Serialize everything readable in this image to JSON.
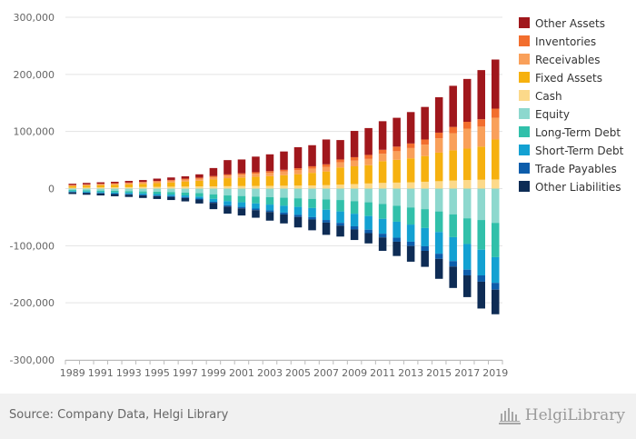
{
  "chart_data": {
    "type": "bar",
    "stacked": true,
    "categories": [
      "1989",
      "1990",
      "1991",
      "1992",
      "1993",
      "1994",
      "1995",
      "1996",
      "1997",
      "1998",
      "1999",
      "2000",
      "2001",
      "2002",
      "2003",
      "2004",
      "2005",
      "2006",
      "2007",
      "2008",
      "2009",
      "2010",
      "2011",
      "2012",
      "2013",
      "2014",
      "2015",
      "2016",
      "2017",
      "2018",
      "2019"
    ],
    "x_tick_labels": [
      "1989",
      "1991",
      "1993",
      "1995",
      "1997",
      "1999",
      "2001",
      "2003",
      "2005",
      "2007",
      "2009",
      "2011",
      "2013",
      "2015",
      "2017",
      "2019"
    ],
    "y_tick_labels": [
      "300,000",
      "200,000",
      "100,000",
      "0",
      "-100,000",
      "-200,000",
      "-300,000"
    ],
    "ylim": [
      -300000,
      300000
    ],
    "grid": true,
    "legend_position": "right",
    "series": [
      {
        "name": "Cash",
        "color": "#fcd98a",
        "values": [
          1500,
          1800,
          2000,
          2200,
          2500,
          2800,
          3000,
          3300,
          3500,
          3800,
          4000,
          4200,
          4400,
          4600,
          4800,
          5000,
          5200,
          5600,
          6000,
          7000,
          8000,
          9000,
          10000,
          10500,
          11000,
          12000,
          13000,
          14000,
          15000,
          15500,
          16000
        ]
      },
      {
        "name": "Fixed Assets",
        "color": "#f6b10f",
        "values": [
          3000,
          3500,
          4000,
          4500,
          5000,
          5500,
          6500,
          7500,
          9000,
          10000,
          12000,
          14000,
          15000,
          16000,
          17000,
          18500,
          20000,
          22000,
          24000,
          30000,
          31000,
          32000,
          38000,
          40000,
          42000,
          45000,
          50000,
          53000,
          55000,
          58000,
          70000
        ]
      },
      {
        "name": "Receivables",
        "color": "#f9a05a",
        "values": [
          1500,
          1600,
          1800,
          2000,
          2200,
          2500,
          2800,
          3000,
          3300,
          3600,
          4000,
          4500,
          5000,
          5500,
          6000,
          6500,
          7000,
          7500,
          8000,
          9000,
          10000,
          11000,
          13000,
          15000,
          18000,
          20000,
          25000,
          30000,
          35000,
          35000,
          38000
        ]
      },
      {
        "name": "Inventories",
        "color": "#f26e2e",
        "values": [
          500,
          600,
          700,
          800,
          900,
          1000,
          1200,
          1400,
          1600,
          1800,
          2000,
          2200,
          2400,
          2600,
          2800,
          3000,
          3500,
          4000,
          4500,
          5000,
          6000,
          7000,
          7000,
          8000,
          8000,
          9000,
          10000,
          11000,
          12000,
          13000,
          16000
        ]
      },
      {
        "name": "Other Assets",
        "color": "#a0171c",
        "values": [
          2000,
          2500,
          2500,
          2500,
          2900,
          3200,
          4000,
          4300,
          4100,
          5800,
          14000,
          25000,
          24200,
          27300,
          29400,
          32000,
          36800,
          36900,
          43500,
          34000,
          46000,
          47000,
          50000,
          50500,
          55000,
          57000,
          62000,
          72000,
          75000,
          86000,
          86000
        ]
      },
      {
        "name": "Equity",
        "color": "#8dd8ce",
        "values": [
          -2500,
          -3000,
          -3500,
          -4000,
          -4500,
          -5000,
          -5500,
          -6000,
          -7000,
          -8000,
          -10000,
          -12000,
          -13000,
          -14000,
          -15000,
          -16000,
          -17000,
          -18000,
          -19000,
          -20000,
          -22000,
          -24000,
          -27000,
          -30000,
          -33000,
          -36000,
          -40000,
          -45000,
          -52000,
          -55000,
          -60000
        ]
      },
      {
        "name": "Long-Term Debt",
        "color": "#31c0aa",
        "values": [
          -2000,
          -2300,
          -2500,
          -2800,
          -3000,
          -3500,
          -4000,
          -4500,
          -5000,
          -6000,
          -8000,
          -10000,
          -11000,
          -12000,
          -13000,
          -14000,
          -15000,
          -16000,
          -18000,
          -20000,
          -22000,
          -24000,
          -26000,
          -28000,
          -30000,
          -33000,
          -36000,
          -40000,
          -45000,
          -52000,
          -60000
        ]
      },
      {
        "name": "Short-Term Debt",
        "color": "#13a1d2",
        "values": [
          -1500,
          -1700,
          -1800,
          -2000,
          -2200,
          -2400,
          -2600,
          -2800,
          -3000,
          -3500,
          -5000,
          -7000,
          -8000,
          -9000,
          -10000,
          -12000,
          -14000,
          -16000,
          -18000,
          -20000,
          -22000,
          -24000,
          -26000,
          -28000,
          -30000,
          -32000,
          -38000,
          -42000,
          -45000,
          -45000,
          -45000
        ]
      },
      {
        "name": "Trade Payables",
        "color": "#0d5dab",
        "values": [
          -500,
          -600,
          -700,
          -800,
          -900,
          -1000,
          -1100,
          -1200,
          -1400,
          -1600,
          -2000,
          -2400,
          -2600,
          -2800,
          -3000,
          -3300,
          -3600,
          -4000,
          -4500,
          -5000,
          -5500,
          -6000,
          -6500,
          -7000,
          -7500,
          -8000,
          -9000,
          -9500,
          -10000,
          -11000,
          -12000
        ]
      },
      {
        "name": "Other Liabilities",
        "color": "#0e2c55",
        "values": [
          -3000,
          -3200,
          -3500,
          -3800,
          -4000,
          -4500,
          -5000,
          -5500,
          -6000,
          -7000,
          -11000,
          -12500,
          -12500,
          -13200,
          -15100,
          -15700,
          -18400,
          -19000,
          -21500,
          -19000,
          -18500,
          -18000,
          -23500,
          -25000,
          -27500,
          -28000,
          -35000,
          -37500,
          -38000,
          -47000,
          -43000
        ]
      }
    ],
    "legend_order": [
      "Other Assets",
      "Inventories",
      "Receivables",
      "Fixed Assets",
      "Cash",
      "Equity",
      "Long-Term Debt",
      "Short-Term Debt",
      "Trade Payables",
      "Other Liabilities"
    ]
  },
  "footer": {
    "source": "Source: Company Data, Helgi Library",
    "brand": "HelgiLibrary",
    "brand_icon": "library-building-icon"
  }
}
